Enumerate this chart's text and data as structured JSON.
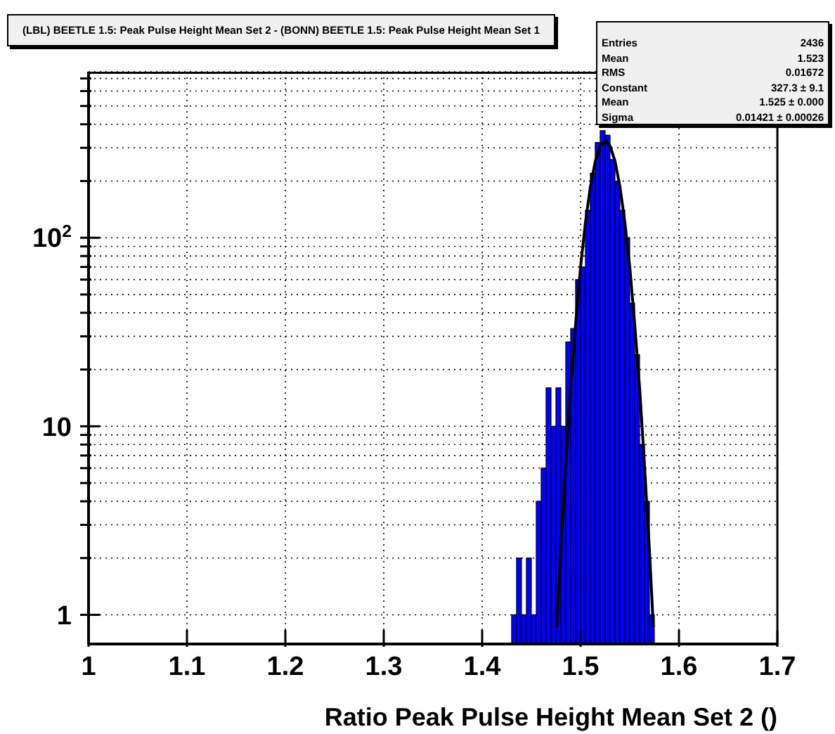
{
  "chart_data": {
    "type": "histogram",
    "title": "(LBL) BEETLE 1.5: Peak Pulse Height Mean Set 2 - (BONN) BEETLE 1.5: Peak Pulse Height Mean Set 1",
    "xlabel": "Ratio Peak Pulse Height Mean Set 2 ()",
    "bins": [
      1.43,
      1.435,
      1.44,
      1.445,
      1.45,
      1.455,
      1.46,
      1.465,
      1.47,
      1.475,
      1.48,
      1.485,
      1.49,
      1.495,
      1.5,
      1.505,
      1.51,
      1.515,
      1.52,
      1.525,
      1.53,
      1.535,
      1.54,
      1.545,
      1.55,
      1.555,
      1.56,
      1.565,
      1.57,
      1.575
    ],
    "series": [
      {
        "color": "#0000ff",
        "values": [
          1,
          2,
          1,
          2,
          1,
          4,
          6,
          16,
          10,
          16,
          10,
          28,
          33,
          60,
          70,
          140,
          220,
          320,
          370,
          350,
          260,
          200,
          140,
          100,
          45,
          24,
          8,
          4,
          1
        ]
      },
      {
        "type": "line",
        "color": "#000000",
        "x": [
          1.476,
          1.48,
          1.485,
          1.49,
          1.495,
          1.5,
          1.505,
          1.51,
          1.515,
          1.52,
          1.525,
          1.53,
          1.535,
          1.54,
          1.545,
          1.55,
          1.555,
          1.56,
          1.565,
          1.57,
          1.574
        ],
        "values": [
          0.86,
          2.2,
          6.2,
          16,
          35,
          70,
          121,
          187,
          255,
          307,
          327,
          307,
          255,
          187,
          121,
          70,
          35,
          16,
          6.2,
          2.2,
          0.86
        ]
      }
    ],
    "xlim": [
      1,
      1.7
    ],
    "xticks": [
      1,
      1.1,
      1.2,
      1.3,
      1.4,
      1.5,
      1.6,
      1.7
    ],
    "ylim": [
      0.7,
      760
    ],
    "yticks": [
      1,
      {
        "value": 2,
        "label": null
      },
      {
        "value": 3,
        "label": null
      },
      {
        "value": 4,
        "label": null
      },
      {
        "value": 5,
        "label": null
      },
      {
        "value": 6,
        "label": null
      },
      {
        "value": 7,
        "label": null
      },
      {
        "value": 8,
        "label": null
      },
      {
        "value": 9,
        "label": null
      },
      10,
      {
        "value": 20,
        "label": null
      },
      {
        "value": 30,
        "label": null
      },
      {
        "value": 40,
        "label": null
      },
      {
        "value": 50,
        "label": null
      },
      {
        "value": 60,
        "label": null
      },
      {
        "value": 70,
        "label": null
      },
      {
        "value": 80,
        "label": null
      },
      {
        "value": 90,
        "label": null
      },
      {
        "value": 100,
        "label": "10$^{2}$"
      },
      {
        "value": 200,
        "label": null
      },
      {
        "value": 300,
        "label": null
      },
      {
        "value": 400,
        "label": null
      },
      {
        "value": 500,
        "label": null
      },
      {
        "value": 600,
        "label": null
      },
      {
        "value": 700,
        "label": null
      }
    ],
    "log": "y",
    "grid": true,
    "marker": "none",
    "line_style": "solid",
    "annotations": [
      "Entries",
      "2436",
      "Mean",
      "1.523",
      "RMS",
      "0.01672",
      "Constant",
      "327.3 ± 9.1",
      "Mean",
      "1.525 ± 0.000",
      "Sigma",
      "0.01421 ± 0.00026"
    ]
  }
}
